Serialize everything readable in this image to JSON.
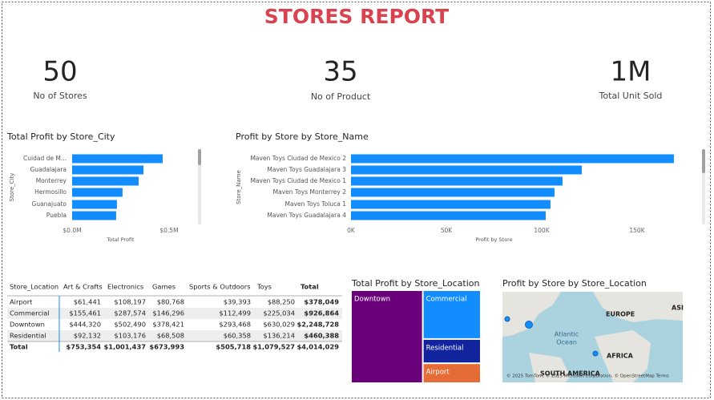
{
  "title": "STORES REPORT",
  "kpis": [
    {
      "value": "50",
      "label": "No of Stores"
    },
    {
      "value": "35",
      "label": "No of Product"
    },
    {
      "value": "1M",
      "label": "Total Unit Sold"
    }
  ],
  "chart_data": [
    {
      "type": "bar",
      "orientation": "horizontal",
      "title": "Total Profit by Store_City",
      "x_label": "Total Profit",
      "y_label": "Store_City",
      "categories": [
        "Cuidad de M...",
        "Guadalajara",
        "Monterrey",
        "Hermosillo",
        "Guanajuato",
        "Puebla"
      ],
      "values": [
        467000,
        368000,
        343000,
        260000,
        231000,
        227000
      ],
      "color": "#118dff",
      "xlim": [
        0,
        620000
      ],
      "xticks": [
        {
          "value": 0,
          "label": "$0.0M"
        },
        {
          "value": 500000,
          "label": "$0.5M"
        }
      ]
    },
    {
      "type": "bar",
      "orientation": "horizontal",
      "title": "Profit by Store by Store_Name",
      "x_label": "Profit by Store",
      "y_label": "Store_Name",
      "categories": [
        "Maven Toys Ciudad de Mexico 2",
        "Maven Toys Guadalajara 3",
        "Maven Toys Ciudad de Mexico 1",
        "Maven Toys Monterrey 2",
        "Maven Toys Toluca 1",
        "Maven Toys Guadalajara 4"
      ],
      "values": [
        169300,
        121000,
        110900,
        106700,
        104600,
        102100
      ],
      "color": "#118dff",
      "xlim": [
        0,
        175000
      ],
      "xticks": [
        {
          "value": 0,
          "label": "0K"
        },
        {
          "value": 50000,
          "label": "50K"
        },
        {
          "value": 100000,
          "label": "100K"
        },
        {
          "value": 150000,
          "label": "150K"
        }
      ]
    },
    {
      "type": "treemap",
      "title": "Total Profit by Store_Location",
      "categories": [
        "Downtown",
        "Commercial",
        "Residential",
        "Airport"
      ],
      "values": [
        2248728,
        926864,
        460388,
        378049
      ],
      "colors": [
        "#6b007b",
        "#118dff",
        "#12239e",
        "#e66c37"
      ]
    }
  ],
  "table": {
    "header": [
      "Store_Location",
      "Art & Crafts",
      "Electronics",
      "Games",
      "Sports & Outdoors",
      "Toys",
      "Total"
    ],
    "rows": [
      [
        "Airport",
        "$61,441",
        "$108,197",
        "$80,768",
        "$39,393",
        "$88,250",
        "$378,049"
      ],
      [
        "Commercial",
        "$155,461",
        "$287,574",
        "$146,296",
        "$112,499",
        "$225,034",
        "$926,864"
      ],
      [
        "Downtown",
        "$444,320",
        "$502,490",
        "$378,421",
        "$293,468",
        "$630,029",
        "$2,248,728"
      ],
      [
        "Residential",
        "$92,132",
        "$103,176",
        "$68,508",
        "$60,358",
        "$136,214",
        "$460,388"
      ],
      [
        "Total",
        "$753,354",
        "$1,001,437",
        "$673,993",
        "$505,718",
        "$1,079,527",
        "$4,014,029"
      ]
    ]
  },
  "map": {
    "title": "Profit by Store by Store_Location",
    "labels": [
      "EUROPE",
      "ASI",
      "Atlantic",
      "Ocean",
      "AFRICA",
      "SOUTH AMERICA"
    ],
    "attribution": "© 2025 TomTom, © 2025 Microsoft Corporation, © OpenStreetMap Terms"
  }
}
